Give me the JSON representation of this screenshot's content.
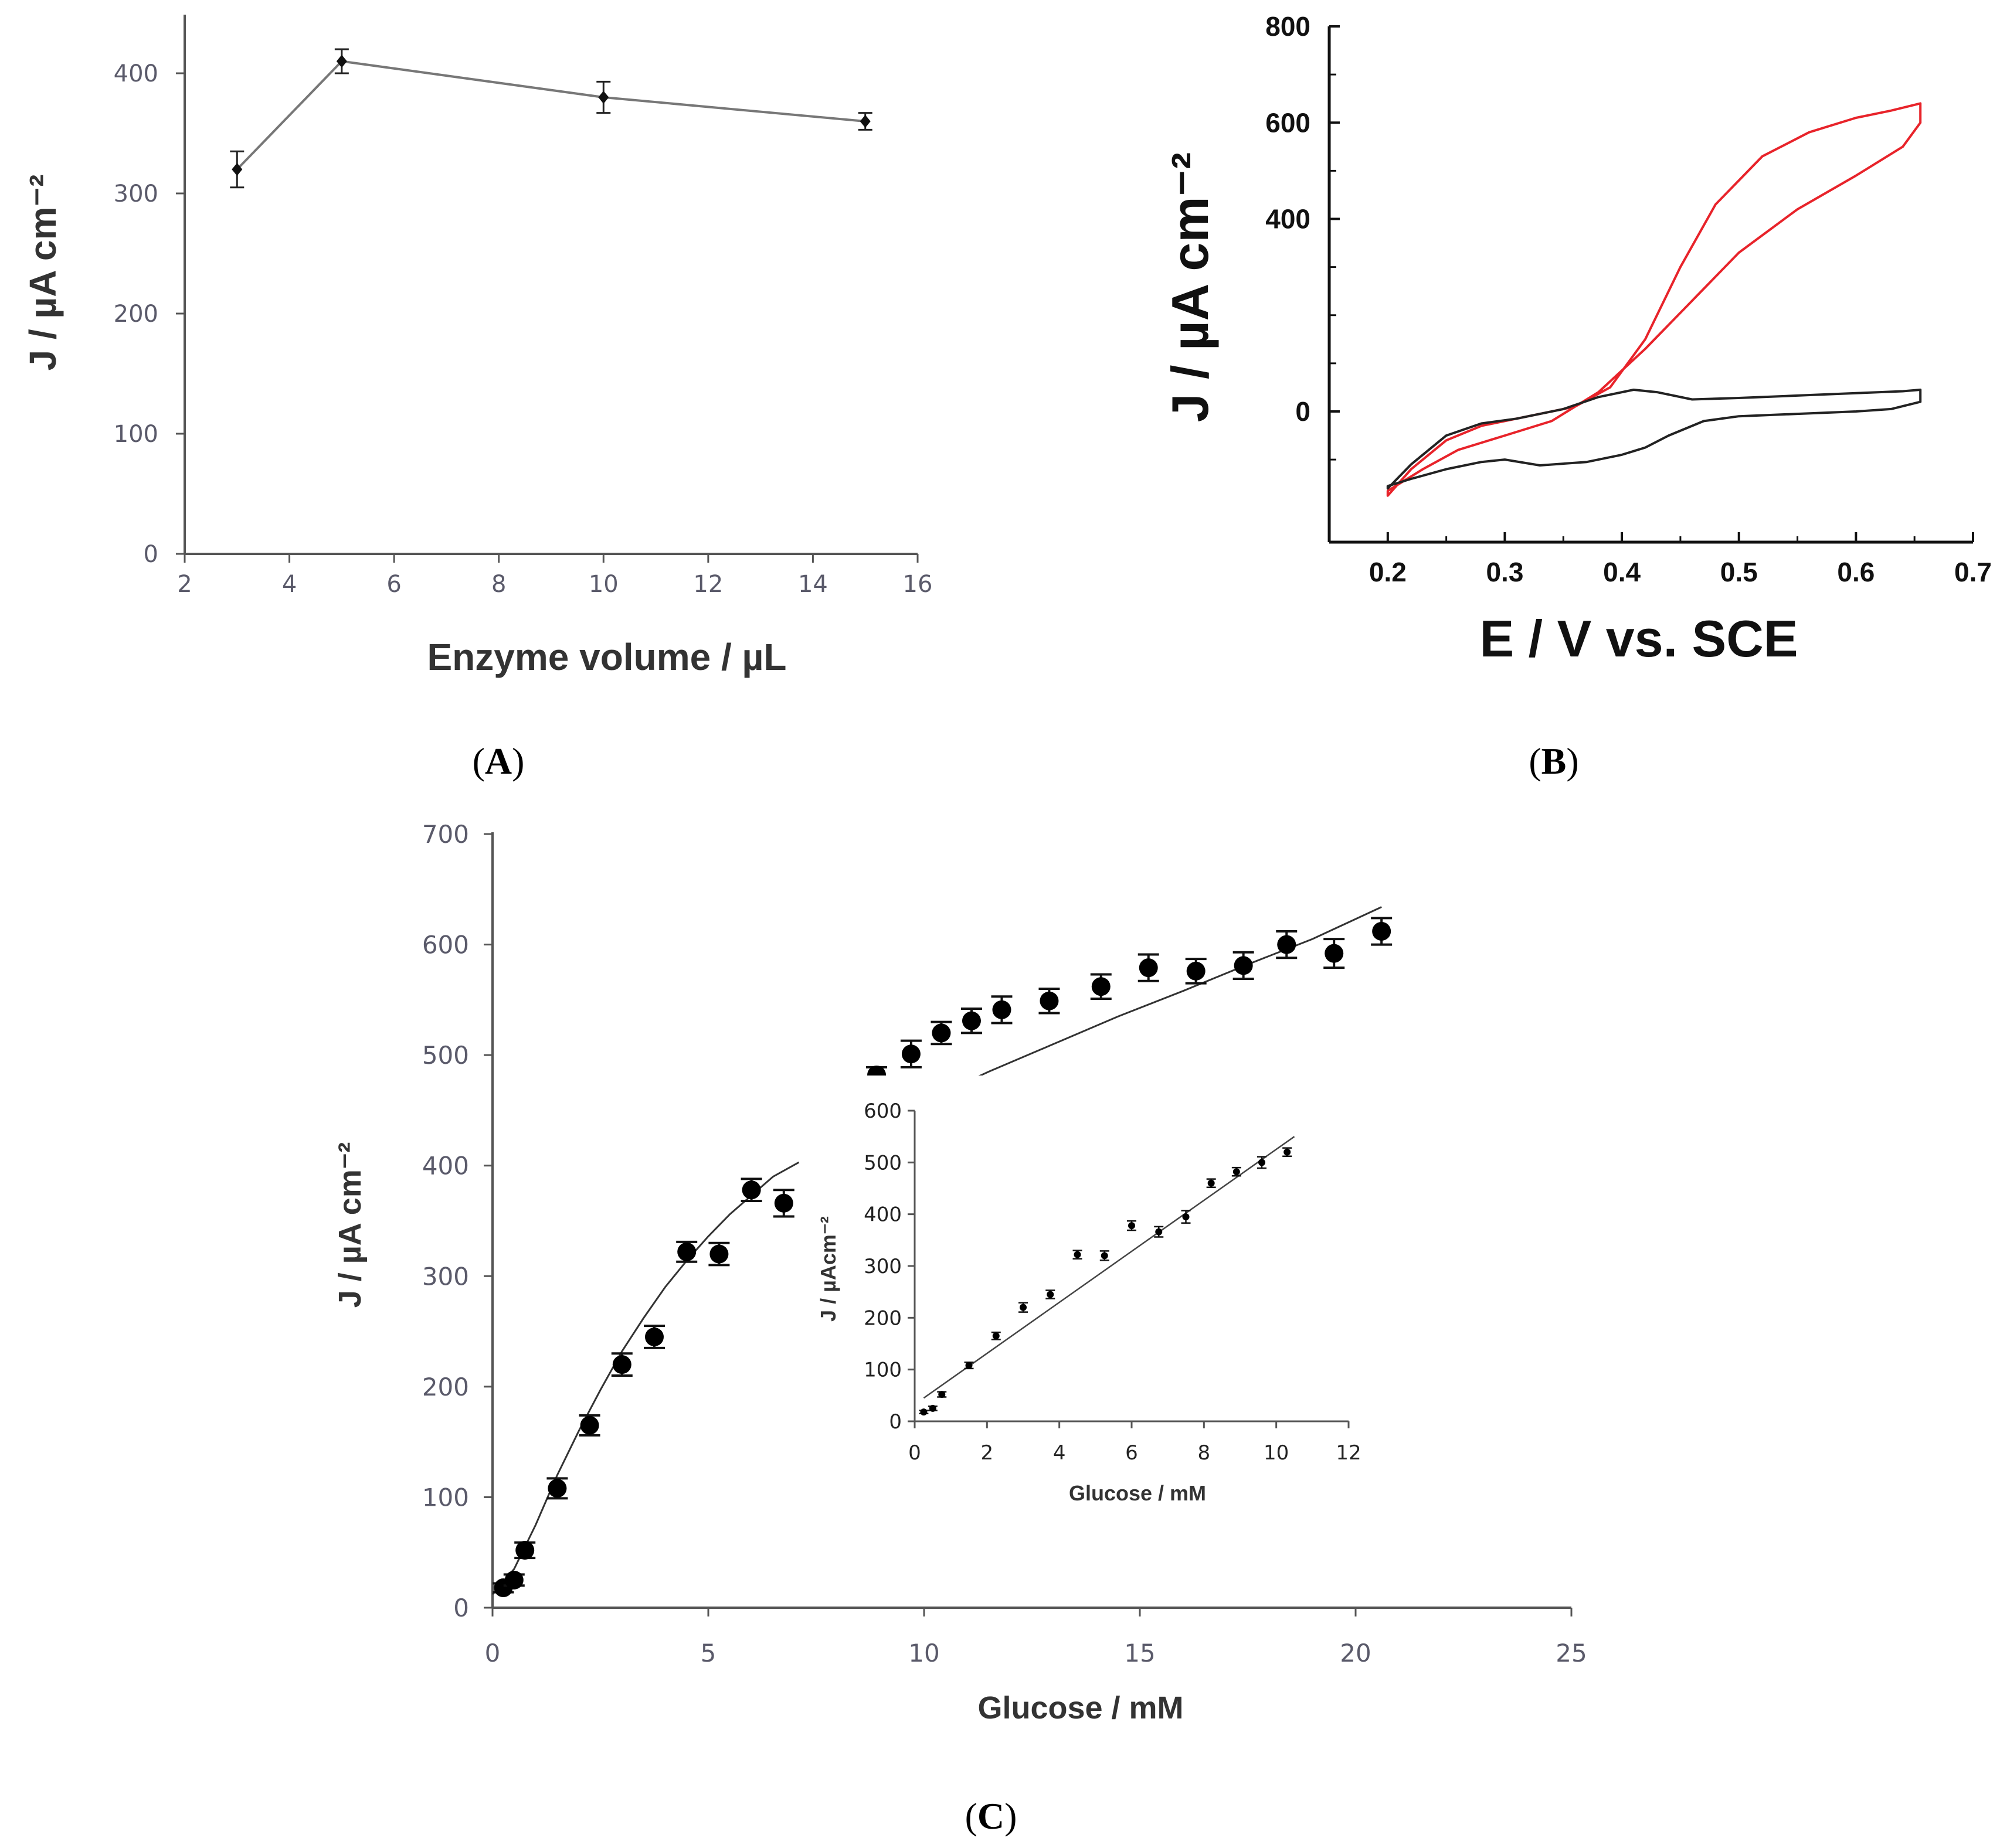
{
  "chart_data": [
    {
      "panel": "A",
      "type": "line",
      "xlabel": "Enzyme volume / µL",
      "ylabel": "J / µA cm⁻²",
      "xlim": [
        2,
        16
      ],
      "ylim": [
        0,
        400
      ],
      "xticks": [
        "2",
        "4",
        "6",
        "8",
        "10",
        "12",
        "14",
        "16"
      ],
      "yticks": [
        "0",
        "100",
        "200",
        "300",
        "400"
      ],
      "x": [
        3,
        5,
        10,
        15
      ],
      "y": [
        320,
        410,
        380,
        360
      ],
      "yerr": [
        15,
        10,
        13,
        7
      ],
      "grid": false
    },
    {
      "panel": "B",
      "type": "line",
      "xlabel": "E / V vs. SCE",
      "ylabel": "J / µA cm⁻²",
      "xlim": [
        0.15,
        0.7
      ],
      "ylim": [
        -200,
        800
      ],
      "xticks": [
        "0.2",
        "0.3",
        "0.4",
        "0.5",
        "0.6",
        "0.7"
      ],
      "yticks": [
        "0",
        "400",
        "600",
        "800"
      ],
      "series": [
        {
          "color": "#e8232a",
          "points": [
            [
              0.2,
              -175
            ],
            [
              0.22,
              -120
            ],
            [
              0.25,
              -60
            ],
            [
              0.28,
              -30
            ],
            [
              0.32,
              -10
            ],
            [
              0.36,
              10
            ],
            [
              0.39,
              50
            ],
            [
              0.42,
              150
            ],
            [
              0.45,
              300
            ],
            [
              0.48,
              430
            ],
            [
              0.52,
              530
            ],
            [
              0.56,
              580
            ],
            [
              0.6,
              610
            ],
            [
              0.63,
              625
            ],
            [
              0.655,
              640
            ],
            [
              0.655,
              600
            ],
            [
              0.64,
              550
            ],
            [
              0.6,
              490
            ],
            [
              0.55,
              420
            ],
            [
              0.5,
              330
            ],
            [
              0.46,
              230
            ],
            [
              0.42,
              130
            ],
            [
              0.38,
              40
            ],
            [
              0.34,
              -20
            ],
            [
              0.3,
              -50
            ],
            [
              0.26,
              -80
            ],
            [
              0.23,
              -120
            ],
            [
              0.2,
              -165
            ]
          ]
        },
        {
          "color": "#222222",
          "points": [
            [
              0.2,
              -160
            ],
            [
              0.22,
              -110
            ],
            [
              0.25,
              -50
            ],
            [
              0.28,
              -25
            ],
            [
              0.31,
              -15
            ],
            [
              0.35,
              5
            ],
            [
              0.38,
              30
            ],
            [
              0.41,
              45
            ],
            [
              0.43,
              40
            ],
            [
              0.46,
              25
            ],
            [
              0.5,
              28
            ],
            [
              0.55,
              33
            ],
            [
              0.6,
              38
            ],
            [
              0.64,
              42
            ],
            [
              0.655,
              45
            ],
            [
              0.655,
              20
            ],
            [
              0.63,
              5
            ],
            [
              0.6,
              0
            ],
            [
              0.55,
              -5
            ],
            [
              0.5,
              -10
            ],
            [
              0.47,
              -20
            ],
            [
              0.44,
              -50
            ],
            [
              0.42,
              -75
            ],
            [
              0.4,
              -90
            ],
            [
              0.37,
              -105
            ],
            [
              0.33,
              -112
            ],
            [
              0.3,
              -100
            ],
            [
              0.28,
              -105
            ],
            [
              0.25,
              -120
            ],
            [
              0.22,
              -140
            ],
            [
              0.2,
              -155
            ]
          ]
        }
      ],
      "grid": false
    },
    {
      "panel": "C",
      "type": "scatter",
      "xlabel": "Glucose / mM",
      "ylabel": "J / µA cm⁻²",
      "xlim": [
        0,
        25
      ],
      "ylim": [
        0,
        700
      ],
      "xticks": [
        "0",
        "5",
        "10",
        "15",
        "20",
        "25"
      ],
      "yticks": [
        "0",
        "100",
        "200",
        "300",
        "400",
        "500",
        "600",
        "700"
      ],
      "x": [
        0.25,
        0.5,
        0.75,
        1.5,
        2.25,
        3,
        3.75,
        4.5,
        5.25,
        6,
        6.75,
        8.9,
        9.7,
        10.4,
        11.1,
        11.8,
        12.9,
        14.1,
        15.2,
        16.3,
        17.4,
        18.4,
        19.5,
        20.6
      ],
      "y": [
        18,
        25,
        52,
        108,
        165,
        220,
        245,
        322,
        320,
        378,
        366,
        482,
        501,
        520,
        531,
        541,
        549,
        562,
        579,
        576,
        581,
        600,
        592,
        612
      ],
      "yerr": [
        4,
        5,
        7,
        9,
        9,
        10,
        10,
        9,
        10,
        10,
        12,
        7,
        12,
        10,
        11,
        12,
        11,
        11,
        12,
        11,
        12,
        12,
        13,
        12
      ],
      "fit_x": [
        0,
        0.5,
        1,
        1.5,
        2,
        2.5,
        3,
        3.5,
        4,
        4.5,
        5,
        5.5,
        6,
        6.5,
        7.1,
        8.6,
        10,
        11.5,
        13,
        14.5,
        16,
        17.5,
        19,
        20.6
      ],
      "fit_y": [
        12,
        35,
        75,
        120,
        160,
        197,
        232,
        262,
        290,
        314,
        336,
        356,
        373,
        390,
        403,
        430,
        458,
        485,
        510,
        535,
        558,
        582,
        605,
        634
      ],
      "grid": false
    },
    {
      "panel": "C-inset",
      "type": "scatter",
      "xlabel": "Glucose / mM",
      "ylabel": "J / µAcm⁻²",
      "xlim": [
        0,
        12
      ],
      "ylim": [
        0,
        600
      ],
      "xticks": [
        "0",
        "2",
        "4",
        "6",
        "8",
        "10",
        "12"
      ],
      "yticks": [
        "0",
        "100",
        "200",
        "300",
        "400",
        "500",
        "600"
      ],
      "x": [
        0.25,
        0.5,
        0.75,
        1.5,
        2.25,
        3,
        3.75,
        4.5,
        5.25,
        6,
        6.75,
        7.5,
        8.2,
        8.9,
        9.6,
        10.3
      ],
      "y": [
        18,
        25,
        52,
        108,
        165,
        220,
        245,
        322,
        320,
        378,
        366,
        395,
        460,
        482,
        500,
        520
      ],
      "yerr": [
        3,
        4,
        5,
        6,
        7,
        9,
        8,
        8,
        9,
        9,
        10,
        12,
        8,
        8,
        11,
        8
      ],
      "fit_x": [
        0.25,
        10.5
      ],
      "fit_y": [
        45,
        550
      ],
      "grid": false
    }
  ],
  "panel_labels": [
    [
      "(",
      "A",
      ")"
    ],
    [
      "(",
      "B",
      ")"
    ],
    [
      "(",
      "C",
      ")"
    ]
  ]
}
